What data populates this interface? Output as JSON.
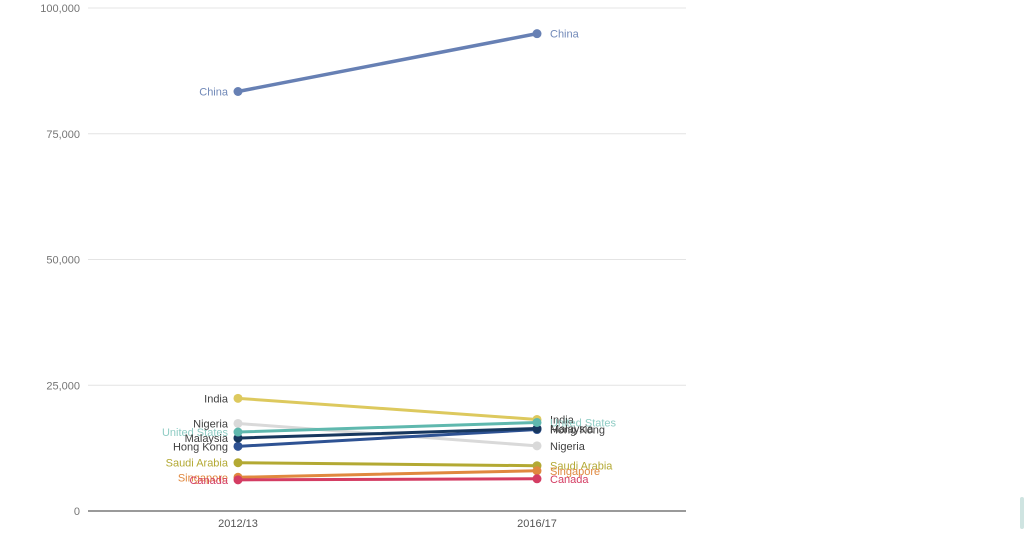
{
  "chart_data": {
    "type": "line",
    "subtype": "slopegraph",
    "title": "",
    "xlabel": "",
    "ylabel": "",
    "categories": [
      "2012/13",
      "2016/17"
    ],
    "y_ticks": [
      {
        "value": 0,
        "label": "0"
      },
      {
        "value": 25000,
        "label": "25,000"
      },
      {
        "value": 50000,
        "label": "50,000"
      },
      {
        "value": 75000,
        "label": "75,000"
      },
      {
        "value": 100000,
        "label": "100,000"
      }
    ],
    "ylim": [
      0,
      100000
    ],
    "grid": true,
    "legend_position": "inline-labels-both-ends",
    "series": [
      {
        "name": "China",
        "values": [
          83400,
          94900
        ],
        "color": "#6780b4",
        "label_color": "#7189b8"
      },
      {
        "name": "India",
        "values": [
          22400,
          18200
        ],
        "color": "#ddc95e",
        "label_color": "#404040"
      },
      {
        "name": "Nigeria",
        "values": [
          17400,
          12950
        ],
        "color": "#d9d9d9",
        "label_color": "#404040"
      },
      {
        "name": "United States",
        "values": [
          15700,
          17600
        ],
        "color": "#5fb8ae",
        "label_color": "#8fccc4"
      },
      {
        "name": "Malaysia",
        "values": [
          14500,
          16400
        ],
        "color": "#17375e",
        "label_color": "#404040"
      },
      {
        "name": "Hong Kong",
        "values": [
          12850,
          16200
        ],
        "color": "#2e5293",
        "label_color": "#404040"
      },
      {
        "name": "Saudi Arabia",
        "values": [
          9600,
          9000
        ],
        "color": "#b3a933",
        "label_color": "#b3a933"
      },
      {
        "name": "Singapore",
        "values": [
          6700,
          8000
        ],
        "color": "#e0883f",
        "label_color": "#e0883f"
      },
      {
        "name": "Canada",
        "values": [
          6200,
          6400
        ],
        "color": "#d43d63",
        "label_color": "#d43d63"
      }
    ]
  }
}
